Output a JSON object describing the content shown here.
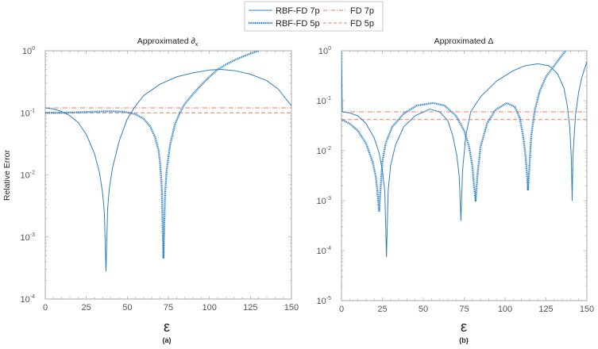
{
  "legend": {
    "entries": [
      "RBF-FD 7p",
      "FD 7p",
      "RBF-FD 5p",
      "FD 5p"
    ],
    "placement": "top-center"
  },
  "colors": {
    "rbf": "#2f7fc1",
    "fd": "#e8805c",
    "axis": "#aaaaaa"
  },
  "chart_data": [
    {
      "type": "line",
      "title": "Approximated ∂",
      "title_sub": "x",
      "caption": "(a)",
      "xlabel": "ε",
      "ylabel": "Relative Error",
      "xlim": [
        0,
        150
      ],
      "ylim": [
        0.0001,
        1
      ],
      "yscale": "log",
      "xticks": [
        0,
        25,
        50,
        75,
        100,
        125,
        150
      ],
      "yticks": [
        {
          "v": 1,
          "e": "0"
        },
        {
          "v": 0.1,
          "e": "-1"
        },
        {
          "v": 0.01,
          "e": "-2"
        },
        {
          "v": 0.001,
          "e": "-3"
        },
        {
          "v": 0.0001,
          "e": "-4"
        }
      ],
      "series": [
        {
          "name": "RBF-FD 7p",
          "style": "thin-solid",
          "points": [
            [
              0,
              0.12
            ],
            [
              5,
              0.115
            ],
            [
              10,
              0.105
            ],
            [
              15,
              0.09
            ],
            [
              20,
              0.07
            ],
            [
              25,
              0.045
            ],
            [
              30,
              0.022
            ],
            [
              33,
              0.011
            ],
            [
              35,
              0.005
            ],
            [
              36,
              0.0025
            ],
            [
              37,
              0.00028
            ],
            [
              38,
              0.0028
            ],
            [
              39,
              0.006
            ],
            [
              41,
              0.013
            ],
            [
              45,
              0.035
            ],
            [
              50,
              0.08
            ],
            [
              55,
              0.13
            ],
            [
              60,
              0.19
            ],
            [
              70,
              0.29
            ],
            [
              80,
              0.38
            ],
            [
              90,
              0.44
            ],
            [
              100,
              0.49
            ],
            [
              107,
              0.5
            ],
            [
              115,
              0.48
            ],
            [
              125,
              0.42
            ],
            [
              135,
              0.33
            ],
            [
              142,
              0.24
            ],
            [
              150,
              0.13
            ]
          ]
        },
        {
          "name": "RBF-FD 5p",
          "style": "thick-dotted",
          "points": [
            [
              0,
              0.1
            ],
            [
              10,
              0.1
            ],
            [
              20,
              0.102
            ],
            [
              30,
              0.104
            ],
            [
              40,
              0.106
            ],
            [
              48,
              0.104
            ],
            [
              55,
              0.095
            ],
            [
              60,
              0.08
            ],
            [
              64,
              0.06
            ],
            [
              67,
              0.04
            ],
            [
              69,
              0.025
            ],
            [
              70,
              0.015
            ],
            [
              71,
              0.006
            ],
            [
              72,
              0.00045
            ],
            [
              73,
              0.005
            ],
            [
              74,
              0.012
            ],
            [
              76,
              0.03
            ],
            [
              79,
              0.065
            ],
            [
              82,
              0.1
            ],
            [
              85,
              0.14
            ],
            [
              90,
              0.2
            ],
            [
              95,
              0.28
            ],
            [
              100,
              0.38
            ],
            [
              105,
              0.5
            ],
            [
              110,
              0.6
            ],
            [
              115,
              0.7
            ],
            [
              120,
              0.8
            ],
            [
              125,
              0.9
            ],
            [
              130,
              1.0
            ]
          ]
        },
        {
          "name": "FD 7p",
          "style": "dash-dot",
          "points": [
            [
              0,
              0.12
            ],
            [
              150,
              0.12
            ]
          ]
        },
        {
          "name": "FD 5p",
          "style": "dashed",
          "points": [
            [
              0,
              0.1
            ],
            [
              150,
              0.1
            ]
          ]
        }
      ]
    },
    {
      "type": "line",
      "title": "Approximated Δ",
      "title_sub": "",
      "caption": "(b)",
      "xlabel": "ε",
      "ylabel": "",
      "xlim": [
        0,
        150
      ],
      "ylim": [
        1e-05,
        1
      ],
      "yscale": "log",
      "xticks": [
        0,
        25,
        50,
        75,
        100,
        125,
        150
      ],
      "yticks": [
        {
          "v": 1,
          "e": "0"
        },
        {
          "v": 0.1,
          "e": "-1"
        },
        {
          "v": 0.01,
          "e": "-2"
        },
        {
          "v": 0.001,
          "e": "-3"
        },
        {
          "v": 0.0001,
          "e": "-4"
        },
        {
          "v": 1e-05,
          "e": "-5"
        }
      ],
      "series": [
        {
          "name": "RBF-FD 7p",
          "style": "thin-solid",
          "points": [
            [
              0,
              1
            ],
            [
              0.5,
              0.06
            ],
            [
              5,
              0.057
            ],
            [
              10,
              0.05
            ],
            [
              15,
              0.035
            ],
            [
              20,
              0.018
            ],
            [
              23,
              0.009
            ],
            [
              25,
              0.004
            ],
            [
              26.5,
              0.0015
            ],
            [
              27.5,
              7.5e-05
            ],
            [
              28.5,
              0.0015
            ],
            [
              30,
              0.005
            ],
            [
              33,
              0.013
            ],
            [
              38,
              0.03
            ],
            [
              45,
              0.05
            ],
            [
              54,
              0.068
            ],
            [
              60,
              0.06
            ],
            [
              65,
              0.04
            ],
            [
              68,
              0.02
            ],
            [
              70.5,
              0.008
            ],
            [
              72,
              0.003
            ],
            [
              73,
              0.0004
            ],
            [
              74,
              0.004
            ],
            [
              76,
              0.02
            ],
            [
              79,
              0.06
            ],
            [
              85,
              0.12
            ],
            [
              95,
              0.25
            ],
            [
              105,
              0.4
            ],
            [
              112,
              0.5
            ],
            [
              120,
              0.55
            ],
            [
              127,
              0.5
            ],
            [
              132,
              0.35
            ],
            [
              136,
              0.18
            ],
            [
              138,
              0.08
            ],
            [
              139.5,
              0.03
            ],
            [
              140.5,
              0.007
            ],
            [
              141,
              0.001
            ],
            [
              141.5,
              0.008
            ],
            [
              143,
              0.05
            ],
            [
              145,
              0.15
            ],
            [
              147,
              0.3
            ],
            [
              150,
              0.6
            ]
          ]
        },
        {
          "name": "RBF-FD 5p",
          "style": "thick-dotted",
          "points": [
            [
              0,
              0.042
            ],
            [
              5,
              0.035
            ],
            [
              10,
              0.025
            ],
            [
              15,
              0.014
            ],
            [
              19,
              0.006
            ],
            [
              21,
              0.003
            ],
            [
              22,
              0.0015
            ],
            [
              23,
              0.0006
            ],
            [
              24,
              0.002
            ],
            [
              25,
              0.006
            ],
            [
              27,
              0.014
            ],
            [
              31,
              0.03
            ],
            [
              38,
              0.055
            ],
            [
              46,
              0.08
            ],
            [
              56,
              0.09
            ],
            [
              63,
              0.08
            ],
            [
              70,
              0.05
            ],
            [
              75,
              0.025
            ],
            [
              78,
              0.012
            ],
            [
              80,
              0.005
            ],
            [
              81,
              0.002
            ],
            [
              82,
              0.001
            ],
            [
              83,
              0.003
            ],
            [
              85,
              0.012
            ],
            [
              89,
              0.035
            ],
            [
              94,
              0.065
            ],
            [
              101,
              0.09
            ],
            [
              106,
              0.075
            ],
            [
              109,
              0.045
            ],
            [
              111,
              0.02
            ],
            [
              112.5,
              0.008
            ],
            [
              113.5,
              0.003
            ],
            [
              114,
              0.0016
            ],
            [
              114.5,
              0.003
            ],
            [
              116,
              0.02
            ],
            [
              118,
              0.06
            ],
            [
              121,
              0.15
            ],
            [
              125,
              0.3
            ],
            [
              130,
              0.5
            ],
            [
              134,
              0.75
            ],
            [
              137,
              1.0
            ]
          ]
        },
        {
          "name": "FD 7p",
          "style": "dash-dot",
          "points": [
            [
              0,
              0.06
            ],
            [
              150,
              0.06
            ]
          ]
        },
        {
          "name": "FD 5p",
          "style": "dashed",
          "points": [
            [
              0,
              0.042
            ],
            [
              150,
              0.042
            ]
          ]
        }
      ]
    }
  ]
}
